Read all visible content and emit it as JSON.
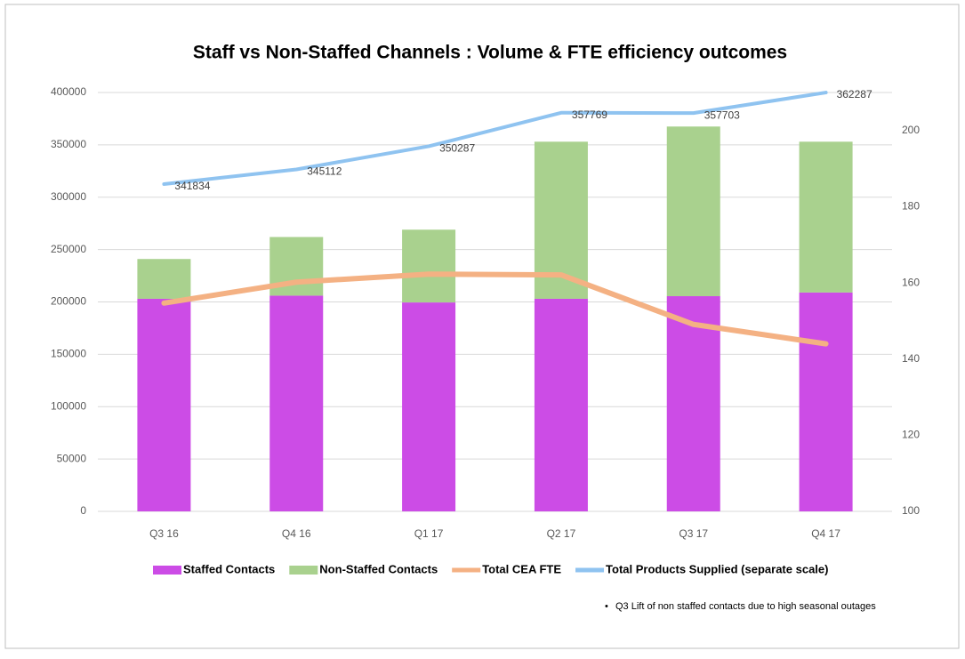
{
  "chart_data": {
    "type": "bar",
    "title": "Staff vs Non-Staffed Channels : Volume & FTE efficiency outcomes",
    "categories": [
      "Q3 16",
      "Q4 16",
      "Q1 17",
      "Q2 17",
      "Q3 17",
      "Q4 17"
    ],
    "series": [
      {
        "name": "Staffed Contacts",
        "type": "bar",
        "stacked": true,
        "color": "#cc4ce6",
        "values": [
          203000,
          206000,
          199500,
          203000,
          205500,
          209000
        ]
      },
      {
        "name": "Non-Staffed Contacts",
        "type": "bar",
        "stacked": true,
        "color": "#a9d18e",
        "values": [
          38000,
          56000,
          69500,
          150000,
          162000,
          144000
        ]
      },
      {
        "name": "Total CEA FTE",
        "type": "line",
        "axis": "y2",
        "color": "#f4b183",
        "values": [
          154.7,
          160.2,
          162.3,
          162.1,
          149.1,
          144.0
        ]
      },
      {
        "name": "Total Products Supplied (separate scale)",
        "type": "line",
        "axis": "y3",
        "color": "#8fc3f0",
        "values": [
          341834,
          345112,
          350287,
          357769,
          357703,
          362287
        ],
        "show_labels": true
      }
    ],
    "ylim": [
      0,
      400000
    ],
    "yticks": [
      0,
      50000,
      100000,
      150000,
      200000,
      250000,
      300000,
      350000,
      400000
    ],
    "y2lim": [
      100,
      210
    ],
    "y2ticks": [
      100,
      120,
      140,
      160,
      180,
      200
    ],
    "y3lim": [
      268700,
      362300
    ],
    "grid": true,
    "legend": "bottom",
    "note": "Q3 Lift of non staffed contacts due to high seasonal outages"
  }
}
